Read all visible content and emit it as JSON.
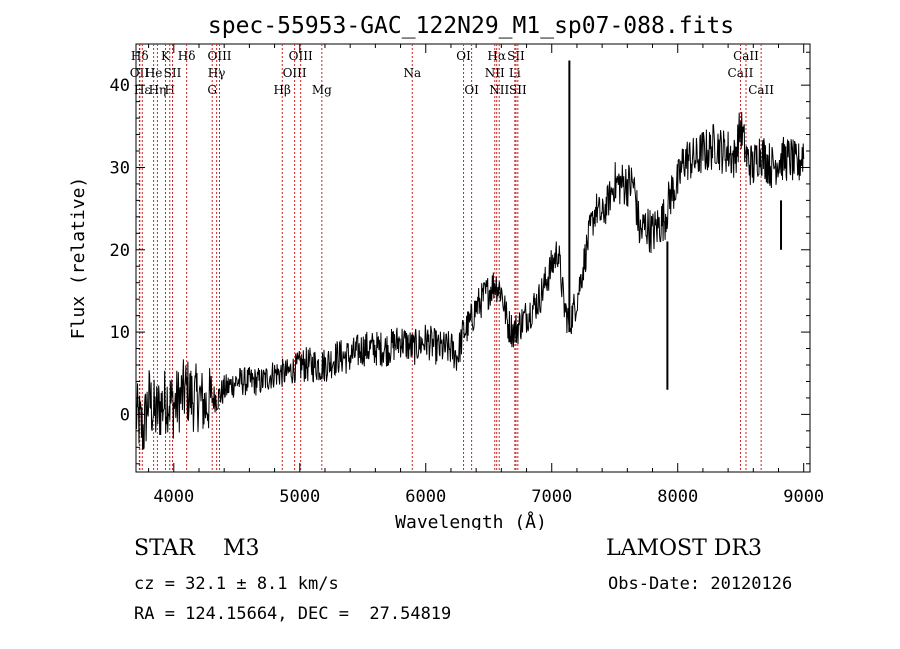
{
  "chart_data": {
    "type": "line",
    "title": "spec-55953-GAC_122N29_M1_sp07-088.fits",
    "xlabel": "Wavelength (Å)",
    "ylabel": "Flux (relative)",
    "xlim": [
      3700,
      9050
    ],
    "ylim": [
      -7,
      45
    ],
    "xticks": [
      4000,
      5000,
      6000,
      7000,
      8000,
      9000
    ],
    "yticks": [
      0,
      10,
      20,
      30,
      40
    ],
    "yminor_step": 2,
    "xminor_step": 200,
    "series": [
      {
        "name": "flux",
        "x": [
          3700,
          3760,
          3800,
          3850,
          3900,
          3950,
          4000,
          4050,
          4100,
          4150,
          4200,
          4250,
          4300,
          4350,
          4400,
          4500,
          4600,
          4700,
          4800,
          4900,
          5000,
          5100,
          5200,
          5300,
          5400,
          5500,
          5600,
          5700,
          5800,
          5900,
          6000,
          6100,
          6200,
          6250,
          6300,
          6350,
          6400,
          6450,
          6500,
          6550,
          6600,
          6650,
          6700,
          6750,
          6800,
          6850,
          6900,
          6950,
          7000,
          7050,
          7100,
          7140,
          7200,
          7250,
          7300,
          7350,
          7400,
          7450,
          7500,
          7550,
          7600,
          7650,
          7700,
          7750,
          7800,
          7850,
          7900,
          7950,
          8000,
          8050,
          8100,
          8150,
          8200,
          8250,
          8300,
          8350,
          8400,
          8450,
          8500,
          8550,
          8600,
          8650,
          8700,
          8750,
          8800,
          8850,
          8900,
          8950,
          9000
        ],
        "y": [
          0,
          -2,
          2,
          0,
          1,
          2,
          1,
          2,
          3,
          2,
          2,
          1,
          2,
          2,
          3,
          4,
          4,
          4,
          5,
          5,
          6,
          6,
          6,
          7,
          7,
          8,
          8,
          8,
          9,
          8,
          9,
          8,
          8,
          7,
          10,
          11,
          13,
          14,
          15,
          16,
          15,
          11,
          10,
          11,
          12,
          13,
          14,
          16,
          18,
          20,
          13,
          11,
          14,
          18,
          22,
          25,
          24,
          26,
          28,
          28,
          28,
          28,
          22,
          23,
          22,
          23,
          24,
          27,
          28,
          31,
          31,
          31,
          32,
          32,
          33,
          32,
          32,
          31,
          35,
          31,
          30,
          32,
          31,
          30,
          31,
          31,
          31,
          30,
          32
        ]
      }
    ],
    "spikes": [
      {
        "x": 7140,
        "ymin": 10,
        "ymax": 43
      },
      {
        "x": 7918,
        "ymin": 3,
        "ymax": 21
      },
      {
        "x": 8820,
        "ymin": 20,
        "ymax": 26
      }
    ],
    "lines": [
      {
        "x": 3730,
        "label": "Hδ",
        "row": 0
      },
      {
        "x": 3727,
        "label": "OII",
        "row": 1
      },
      {
        "x": 3750,
        "label": "Hε",
        "row": 2
      },
      {
        "x": 3840,
        "label": "He",
        "row": 1
      },
      {
        "x": 3870,
        "label": "Hη",
        "row": 2
      },
      {
        "x": 3934,
        "label": "K",
        "row": 0
      },
      {
        "x": 3968,
        "label": "H",
        "row": 2
      },
      {
        "x": 3990,
        "label": "SII",
        "row": 1
      },
      {
        "x": 4102,
        "label": "Hδ",
        "row": 0
      },
      {
        "x": 4305,
        "label": "G",
        "row": 2
      },
      {
        "x": 4340,
        "label": "Hγ",
        "row": 1
      },
      {
        "x": 4363,
        "label": "OIII",
        "row": 0
      },
      {
        "x": 4861,
        "label": "Hβ",
        "row": 2
      },
      {
        "x": 4959,
        "label": "OIII",
        "row": 1
      },
      {
        "x": 5007,
        "label": "OIII",
        "row": 0
      },
      {
        "x": 5175,
        "label": "Mg",
        "row": 2
      },
      {
        "x": 5893,
        "label": "Na",
        "row": 1
      },
      {
        "x": 6300,
        "label": "OI",
        "row": 0
      },
      {
        "x": 6364,
        "label": "OI",
        "row": 2
      },
      {
        "x": 6548,
        "label": "NII",
        "row": 1
      },
      {
        "x": 6563,
        "label": "Hα",
        "row": 0
      },
      {
        "x": 6583,
        "label": "NII",
        "row": 2
      },
      {
        "x": 6707,
        "label": "Li",
        "row": 1
      },
      {
        "x": 6716,
        "label": "SII",
        "row": 0
      },
      {
        "x": 6731,
        "label": "SII",
        "row": 2
      },
      {
        "x": 8498,
        "label": "CaII",
        "row": 1
      },
      {
        "x": 8542,
        "label": "CaII",
        "row": 0
      },
      {
        "x": 8662,
        "label": "CaII",
        "row": 2
      }
    ]
  },
  "info": {
    "star_class": "STAR    M3",
    "survey": "LAMOST DR3",
    "cz": "cz = 32.1 ± 8.1 km/s",
    "obs_date": "Obs-Date: 20120126",
    "radec": "RA = 124.15664, DEC =  27.54819"
  }
}
